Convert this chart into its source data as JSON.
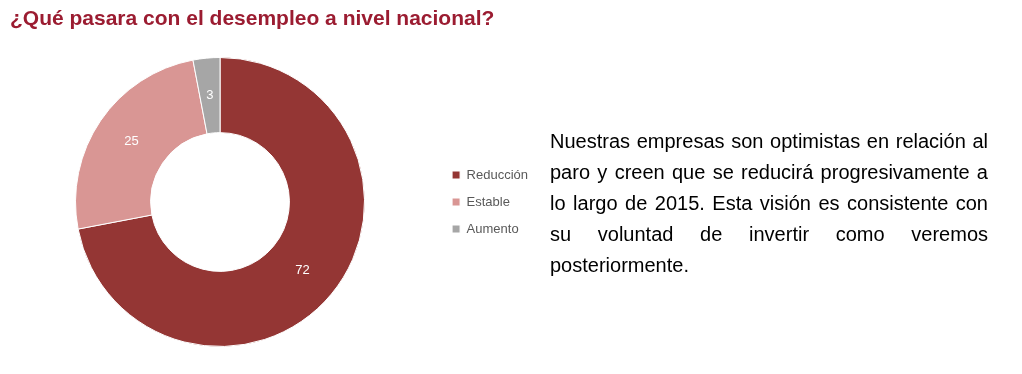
{
  "chart_data": {
    "type": "donut",
    "title": "¿Qué pasara con el desempleo a nivel nacional?",
    "categories": [
      "Reducción",
      "Estable",
      "Aumento"
    ],
    "values": [
      72,
      25,
      3
    ],
    "colors": [
      "#943634",
      "#d99694",
      "#a6a6a6"
    ],
    "data_labels": true,
    "legend": "right",
    "annotations": [
      "Nuestras empresas son optimistas en relación al paro y creen que se reducirá progresivamente a lo largo de 2015. Esta visión es consistente con su voluntad de invertir como veremos posteriormente."
    ]
  }
}
